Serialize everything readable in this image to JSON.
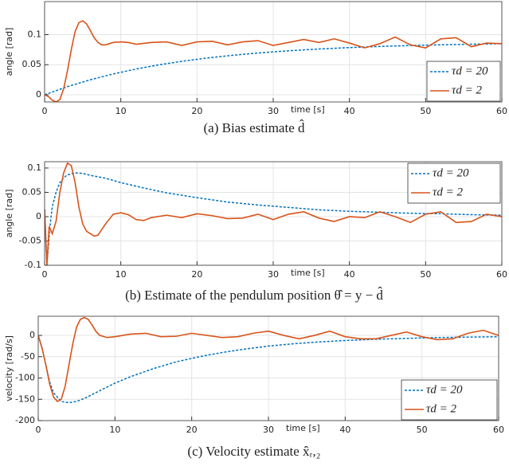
{
  "chart_data": [
    {
      "type": "line",
      "caption": "(a) Bias estimate d̂",
      "ylabel": "angle [rad]",
      "xlabel": "time [s]",
      "xlim": [
        0,
        60
      ],
      "ylim": [
        -0.012,
        0.155
      ],
      "xticks": [
        0,
        10,
        20,
        30,
        40,
        50,
        60
      ],
      "yticks": [
        0,
        0.05,
        0.1
      ],
      "grid": true,
      "legend": "lower right",
      "series": [
        {
          "name": "τd = 20",
          "color": "#0072BD",
          "dash": true,
          "x": [
            0,
            3,
            6,
            9,
            12,
            15,
            18,
            21,
            24,
            27,
            30,
            33,
            36,
            39,
            42,
            45,
            48,
            51,
            54,
            57,
            60
          ],
          "values": [
            0,
            0.0135,
            0.0249,
            0.0346,
            0.0428,
            0.0498,
            0.0556,
            0.0606,
            0.0648,
            0.0684,
            0.0714,
            0.0739,
            0.0761,
            0.0779,
            0.0795,
            0.0808,
            0.0819,
            0.0828,
            0.0836,
            0.0843,
            0.0849
          ]
        },
        {
          "name": "τd = 2",
          "color": "#D95319",
          "dash": false,
          "x": [
            0,
            0.5,
            1,
            1.5,
            2,
            2.5,
            3,
            3.5,
            4,
            4.5,
            5,
            5.5,
            6,
            6.5,
            7,
            7.5,
            8,
            9,
            10,
            11,
            12,
            14,
            16,
            18,
            20,
            22,
            24,
            26,
            28,
            30,
            32,
            34,
            36,
            38,
            40,
            42,
            44,
            46,
            48,
            50,
            52,
            54,
            56,
            58,
            60
          ],
          "values": [
            0,
            -0.003,
            -0.009,
            -0.012,
            -0.008,
            0.01,
            0.04,
            0.075,
            0.105,
            0.12,
            0.123,
            0.118,
            0.107,
            0.095,
            0.087,
            0.083,
            0.083,
            0.087,
            0.088,
            0.087,
            0.084,
            0.087,
            0.088,
            0.082,
            0.088,
            0.089,
            0.083,
            0.088,
            0.09,
            0.082,
            0.087,
            0.092,
            0.087,
            0.093,
            0.086,
            0.078,
            0.085,
            0.096,
            0.083,
            0.078,
            0.093,
            0.095,
            0.08,
            0.086,
            0.085
          ]
        }
      ]
    },
    {
      "type": "line",
      "caption": "(b) Estimate of the pendulum position θ̂ = y − d̂",
      "ylabel": "angle [rad]",
      "xlabel": "time [s]",
      "xlim": [
        0,
        60
      ],
      "ylim": [
        -0.1,
        0.113
      ],
      "xticks": [
        0,
        10,
        20,
        30,
        40,
        50,
        60
      ],
      "yticks": [
        -0.1,
        -0.05,
        0,
        0.05,
        0.1
      ],
      "grid": true,
      "legend": "upper right",
      "series": [
        {
          "name": "τd = 20",
          "color": "#0072BD",
          "dash": true,
          "x": [
            0,
            0.3,
            0.7,
            1,
            1.5,
            2,
            2.5,
            3,
            4,
            5,
            6,
            8,
            10,
            13,
            16,
            20,
            24,
            28,
            32,
            36,
            40,
            44,
            48,
            52,
            56,
            60
          ],
          "values": [
            0.015,
            -0.1,
            -0.02,
            0.02,
            0.05,
            0.07,
            0.08,
            0.086,
            0.09,
            0.089,
            0.085,
            0.079,
            0.07,
            0.059,
            0.049,
            0.039,
            0.03,
            0.024,
            0.019,
            0.014,
            0.011,
            0.009,
            0.007,
            0.006,
            0.004,
            0.003
          ]
        },
        {
          "name": "τd = 2",
          "color": "#D95319",
          "dash": false,
          "x": [
            0,
            0.3,
            0.6,
            1,
            1.5,
            2,
            2.5,
            3,
            3.5,
            4,
            4.5,
            5,
            5.5,
            6,
            6.5,
            7,
            8,
            9,
            10,
            11,
            12,
            13,
            14,
            16,
            18,
            20,
            22,
            24,
            26,
            28,
            30,
            32,
            34,
            36,
            38,
            40,
            42,
            44,
            46,
            48,
            50,
            52,
            54,
            56,
            58,
            60
          ],
          "values": [
            0.015,
            -0.1,
            -0.02,
            -0.035,
            -0.01,
            0.05,
            0.09,
            0.11,
            0.105,
            0.07,
            0.02,
            -0.015,
            -0.03,
            -0.035,
            -0.04,
            -0.038,
            -0.015,
            0.005,
            0.008,
            0.004,
            -0.006,
            -0.008,
            -0.002,
            0.003,
            -0.002,
            0.006,
            0.002,
            -0.004,
            -0.003,
            0.005,
            -0.006,
            0.005,
            0.01,
            -0.003,
            -0.01,
            0,
            -0.002,
            0.01,
            0,
            -0.012,
            0.005,
            0.01,
            -0.012,
            -0.01,
            0.005,
            0
          ]
        }
      ]
    },
    {
      "type": "line",
      "caption": "(c) Velocity estimate x̂ᵣ,₂",
      "ylabel": "velocity [rad/s]",
      "xlabel": "time [s]",
      "xlim": [
        0,
        60
      ],
      "ylim": [
        -200,
        45
      ],
      "xticks": [
        0,
        10,
        20,
        30,
        40,
        50,
        60
      ],
      "yticks": [
        -200,
        -150,
        -100,
        -50,
        0
      ],
      "grid": true,
      "legend": "lower right",
      "series": [
        {
          "name": "τd = 20",
          "color": "#0072BD",
          "dash": true,
          "x": [
            0,
            0.5,
            1,
            1.5,
            2,
            3,
            4,
            5,
            6,
            8,
            10,
            12,
            15,
            18,
            21,
            24,
            27,
            30,
            33,
            36,
            40,
            44,
            48,
            52,
            56,
            60
          ],
          "values": [
            0,
            -30,
            -70,
            -110,
            -135,
            -155,
            -158,
            -155,
            -148,
            -130,
            -112,
            -97,
            -78,
            -62,
            -50,
            -40,
            -32,
            -25,
            -20,
            -16,
            -12,
            -9,
            -7,
            -5,
            -4,
            -3
          ]
        },
        {
          "name": "τd = 2",
          "color": "#D95319",
          "dash": false,
          "x": [
            0,
            0.5,
            1,
            1.5,
            2,
            2.5,
            3,
            3.5,
            4,
            4.5,
            5,
            5.5,
            6,
            6.5,
            7,
            7.5,
            8,
            9,
            10,
            12,
            14,
            16,
            18,
            20,
            22,
            24,
            26,
            28,
            30,
            32,
            34,
            36,
            38,
            40,
            42,
            44,
            46,
            48,
            50,
            52,
            54,
            56,
            58,
            60
          ],
          "values": [
            0,
            -30,
            -70,
            -115,
            -145,
            -155,
            -150,
            -120,
            -70,
            -20,
            20,
            38,
            42,
            38,
            25,
            10,
            0,
            -5,
            -3,
            3,
            5,
            -3,
            -2,
            5,
            0,
            -5,
            -3,
            5,
            10,
            0,
            -8,
            0,
            10,
            -3,
            -8,
            -8,
            0,
            8,
            -3,
            -10,
            -8,
            5,
            12,
            0
          ]
        }
      ]
    }
  ]
}
